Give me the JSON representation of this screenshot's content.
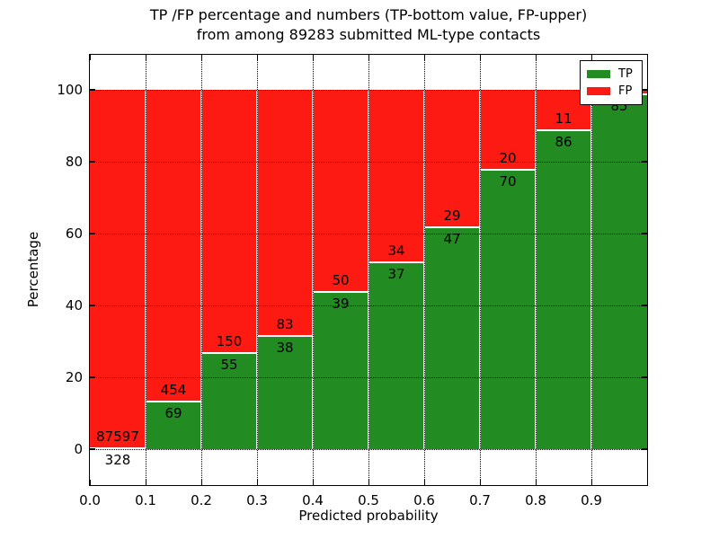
{
  "figure": {
    "title_line1": "TP /FP percentage and numbers (TP-bottom value, FP-upper)",
    "title_line2": "from among 89283 submitted ML-type contacts",
    "background_color": "#ffffff"
  },
  "legend": {
    "position": "upper right",
    "items": [
      {
        "label": "TP",
        "color": "#228b22"
      },
      {
        "label": "FP",
        "color": "#fc1a13"
      }
    ]
  },
  "chart_data": {
    "type": "bar",
    "subtype": "stacked-percentage",
    "title": "TP /FP percentage and numbers (TP-bottom value, FP-upper) from among 89283 submitted ML-type contacts",
    "xlabel": "Predicted probability",
    "ylabel": "Percentage",
    "total_submitted_contacts": 89283,
    "bin_width": 0.1,
    "bin_starts": [
      0.0,
      0.1,
      0.2,
      0.3,
      0.4,
      0.5,
      0.6,
      0.7,
      0.8,
      0.9
    ],
    "x_tick_labels": [
      "0.0",
      "0.1",
      "0.2",
      "0.3",
      "0.4",
      "0.5",
      "0.6",
      "0.7",
      "0.8",
      "0.9"
    ],
    "y_ticks": [
      0,
      20,
      40,
      60,
      80,
      100
    ],
    "y_tick_labels": [
      "0",
      "20",
      "40",
      "60",
      "80",
      "100"
    ],
    "ylim": [
      -10,
      110
    ],
    "grid": "dotted",
    "series": [
      {
        "name": "TP",
        "position": "bottom",
        "color": "#228b22",
        "counts": [
          328,
          69,
          55,
          38,
          39,
          37,
          47,
          70,
          86,
          85
        ]
      },
      {
        "name": "FP",
        "position": "top",
        "color": "#fc1a13",
        "counts": [
          87597,
          454,
          150,
          83,
          50,
          34,
          29,
          20,
          11,
          null
        ]
      }
    ],
    "tp_percent": [
      0.37,
      13.19,
      26.83,
      31.4,
      43.82,
      52.11,
      61.84,
      77.78,
      88.66,
      98.84
    ]
  }
}
